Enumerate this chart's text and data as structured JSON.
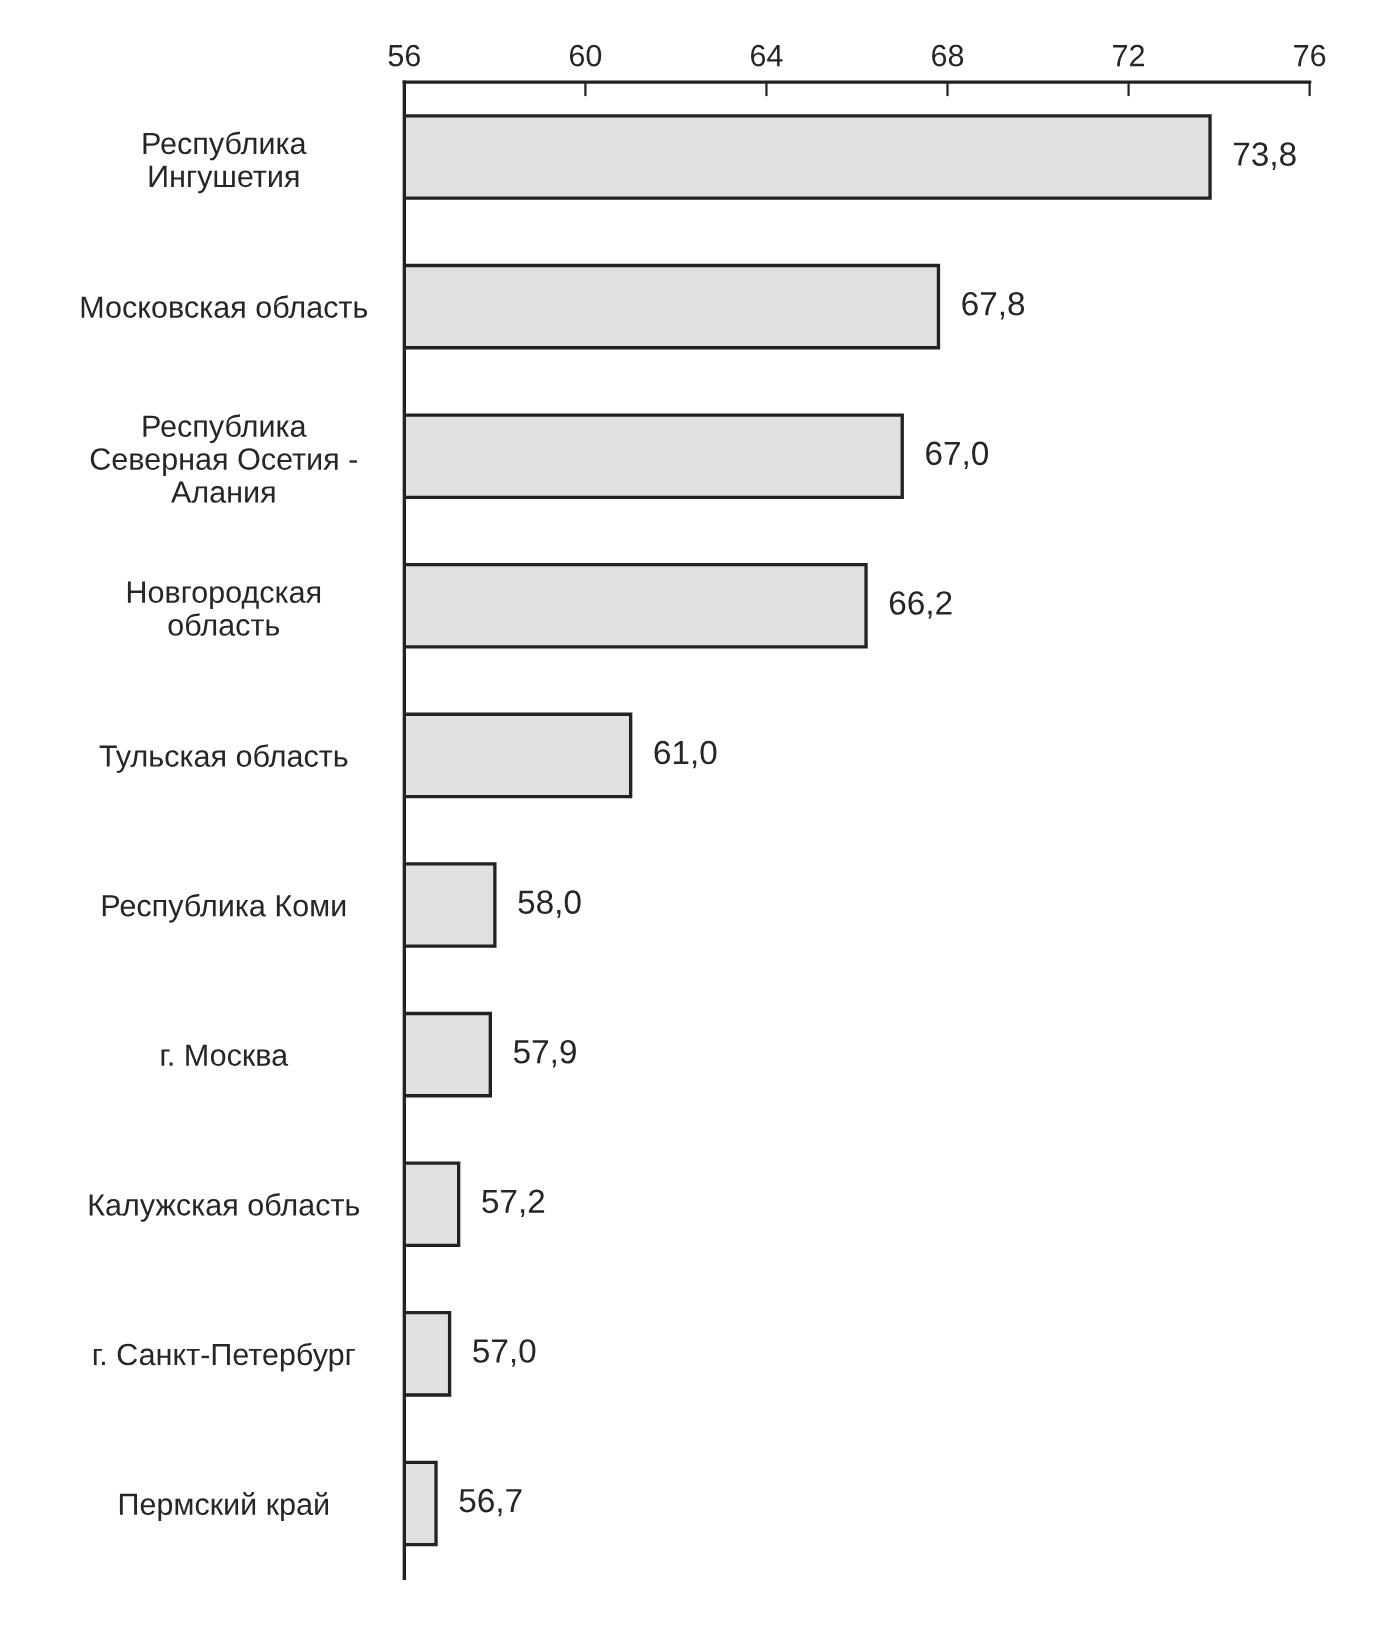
{
  "chart_data": {
    "type": "bar",
    "orientation": "horizontal",
    "categories": [
      "Республика\nИнгушетия",
      "Московская область",
      "Республика\nСеверная Осетия -\nАлания",
      "Новгородская\nобласть",
      "Тульская область",
      "Республика Коми",
      "г. Москва",
      "Калужская область",
      "г. Санкт-Петербург",
      "Пермский край"
    ],
    "values": [
      73.8,
      67.8,
      67.0,
      66.2,
      61.0,
      58.0,
      57.9,
      57.2,
      57.0,
      56.7
    ],
    "value_labels": [
      "73,8",
      "67,8",
      "67,0",
      "66,2",
      "61,0",
      "58,0",
      "57,9",
      "57,2",
      "57,0",
      "56,7"
    ],
    "color": "#e0e0e0",
    "xlim": [
      56,
      76
    ],
    "xticks": [
      56,
      60,
      64,
      68,
      72,
      76
    ],
    "grid": false,
    "legend": false
  }
}
